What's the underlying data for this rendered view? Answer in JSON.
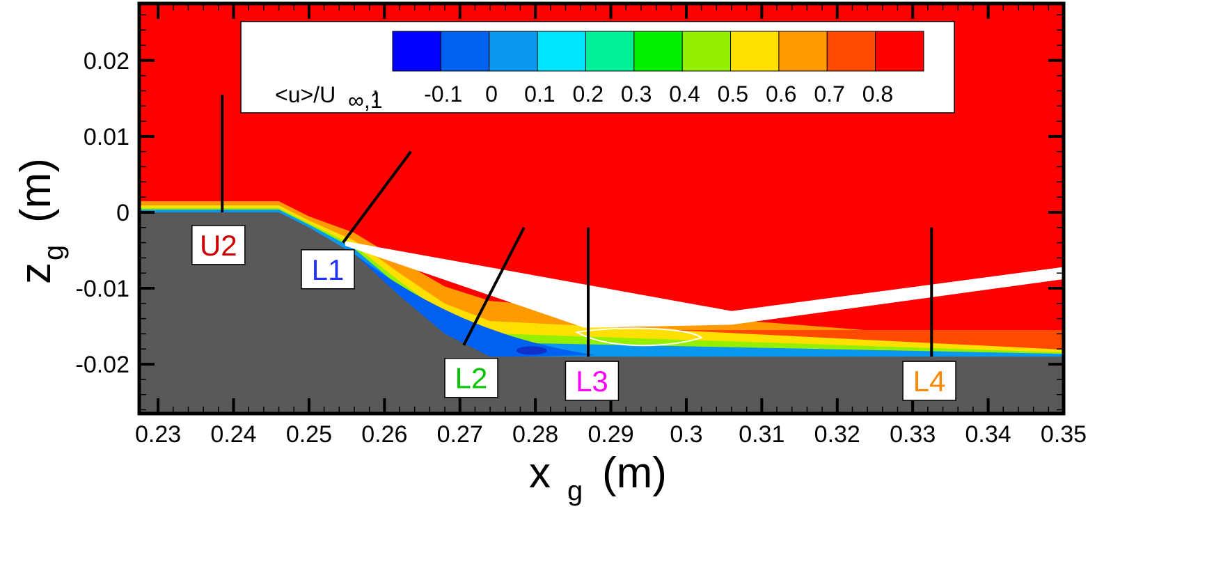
{
  "chart_data": {
    "type": "heatmap",
    "title": "",
    "xlabel": "x",
    "xlabel_sub": "g",
    "xlabel_unit": "(m)",
    "ylabel": "z",
    "ylabel_sub": "g",
    "ylabel_unit": "(m)",
    "xlim": [
      0.2275,
      0.35
    ],
    "ylim": [
      -0.0265,
      0.0275
    ],
    "x_ticks": [
      {
        "value": 0.23,
        "label": "0.23"
      },
      {
        "value": 0.24,
        "label": "0.24"
      },
      {
        "value": 0.25,
        "label": "0.25"
      },
      {
        "value": 0.26,
        "label": "0.26"
      },
      {
        "value": 0.27,
        "label": "0.27"
      },
      {
        "value": 0.28,
        "label": "0.28"
      },
      {
        "value": 0.29,
        "label": "0.29"
      },
      {
        "value": 0.3,
        "label": "0.3"
      },
      {
        "value": 0.31,
        "label": "0.31"
      },
      {
        "value": 0.32,
        "label": "0.32"
      },
      {
        "value": 0.33,
        "label": "0.33"
      },
      {
        "value": 0.34,
        "label": "0.34"
      },
      {
        "value": 0.35,
        "label": "0.35"
      }
    ],
    "y_ticks": [
      {
        "value": 0.02,
        "label": "0.02"
      },
      {
        "value": 0.01,
        "label": "0.01"
      },
      {
        "value": 0,
        "label": "0"
      },
      {
        "value": -0.01,
        "label": "-0.01"
      },
      {
        "value": -0.02,
        "label": "-0.02"
      }
    ],
    "colorbar": {
      "label": "<u>/U",
      "label_sub": "∞,1",
      "label_suffix": ":",
      "levels": [
        -0.15,
        -0.1,
        -0.05,
        0,
        0.05,
        0.1,
        0.15,
        0.2,
        0.25,
        0.3,
        0.35,
        0.4,
        0.45,
        0.5,
        0.55,
        0.6,
        0.65,
        0.7,
        0.75,
        0.8,
        0.85,
        0.9
      ],
      "colors": [
        "#0000ff",
        "#0060f0",
        "#0a98ee",
        "#00e5ff",
        "#00f09a",
        "#00f000",
        "#94f000",
        "#ffe000",
        "#ff9a00",
        "#ff4a00",
        "#ff0000"
      ],
      "tick_labels": [
        {
          "value": -0.1,
          "label": "-0.1"
        },
        {
          "value": 0,
          "label": "0"
        },
        {
          "value": 0.1,
          "label": "0.1"
        },
        {
          "value": 0.2,
          "label": "0.2"
        },
        {
          "value": 0.3,
          "label": "0.3"
        },
        {
          "value": 0.4,
          "label": "0.4"
        },
        {
          "value": 0.5,
          "label": "0.5"
        },
        {
          "value": 0.6,
          "label": "0.6"
        },
        {
          "value": 0.7,
          "label": "0.7"
        },
        {
          "value": 0.8,
          "label": "0.8"
        }
      ]
    },
    "geometry": {
      "wall_profile": [
        [
          0.2275,
          0.0
        ],
        [
          0.246,
          0.0
        ],
        [
          0.25,
          -0.002
        ],
        [
          0.256,
          -0.0055
        ],
        [
          0.262,
          -0.011
        ],
        [
          0.268,
          -0.016
        ],
        [
          0.274,
          -0.019
        ],
        [
          0.35,
          -0.019
        ]
      ],
      "wall_color": "#595959",
      "freestream_color": "#ff0000"
    },
    "probes": [
      {
        "name": "U2",
        "color": "#cc0000",
        "line": [
          [
            0.2385,
            0.0
          ],
          [
            0.2385,
            0.0155
          ]
        ],
        "label_at": [
          0.238,
          -0.0043
        ]
      },
      {
        "name": "L1",
        "color": "#2030ff",
        "line": [
          [
            0.2545,
            -0.004
          ],
          [
            0.2635,
            0.008
          ]
        ],
        "label_at": [
          0.2525,
          -0.0075
        ]
      },
      {
        "name": "L2",
        "color": "#00c400",
        "line": [
          [
            0.2705,
            -0.0175
          ],
          [
            0.2785,
            -0.002
          ]
        ],
        "label_at": [
          0.2715,
          -0.0218
        ]
      },
      {
        "name": "L3",
        "color": "#ff00ff",
        "line": [
          [
            0.287,
            -0.019
          ],
          [
            0.287,
            -0.002
          ]
        ],
        "label_at": [
          0.2875,
          -0.0222
        ]
      },
      {
        "name": "L4",
        "color": "#ff8800",
        "line": [
          [
            0.3325,
            -0.019
          ],
          [
            0.3325,
            -0.002
          ]
        ],
        "label_at": [
          0.3322,
          -0.0222
        ]
      }
    ]
  }
}
